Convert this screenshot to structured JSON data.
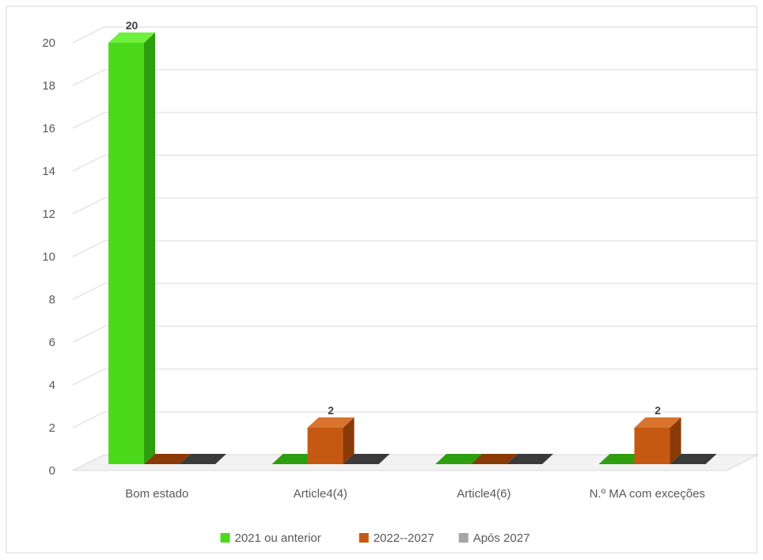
{
  "chart_data": {
    "type": "bar",
    "title": "",
    "xlabel": "",
    "ylabel": "",
    "categories": [
      "Bom estado",
      "Article4(4)",
      "Article4(6)",
      "N.º MA com exceções"
    ],
    "series": [
      {
        "name": "2021 ou anterior",
        "values": [
          20,
          0,
          0,
          0
        ],
        "color": "#4cd91c",
        "side_color": "#2e9e0e",
        "top_color": "#6ef03c"
      },
      {
        "name": "2022--2027",
        "values": [
          0,
          2,
          0,
          2
        ],
        "color": "#c65911",
        "side_color": "#8a3a06",
        "top_color": "#d9742e"
      },
      {
        "name": "Após 2027",
        "values": [
          0,
          0,
          0,
          0
        ],
        "color": "#a5a5a5",
        "side_color": "#3a3a3a",
        "top_color": "#bfbfbf"
      }
    ],
    "ylim": [
      0,
      20
    ],
    "yticks": [
      0,
      2,
      4,
      6,
      8,
      10,
      12,
      14,
      16,
      18,
      20
    ],
    "grid": true,
    "legend_position": "bottom",
    "data_labels": [
      {
        "series": 0,
        "category": 0,
        "text": "20"
      },
      {
        "series": 1,
        "category": 1,
        "text": "2"
      },
      {
        "series": 1,
        "category": 3,
        "text": "2"
      }
    ]
  }
}
